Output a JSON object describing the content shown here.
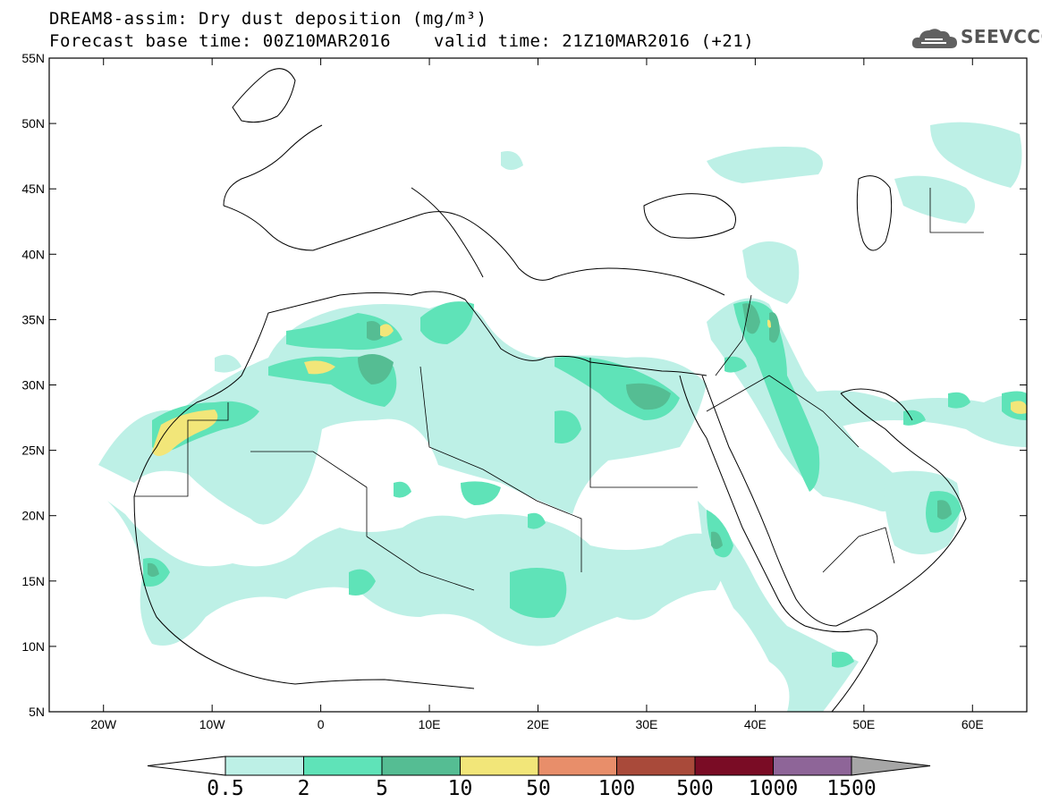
{
  "title": {
    "line1": "DREAM8-assim: Dry dust deposition (mg/m³)",
    "line2": "Forecast base time: 00Z10MAR2016",
    "valid": "valid time: 21Z10MAR2016 (+21)"
  },
  "logo": {
    "text": "SEEVCCC",
    "icon": "cloud-icon"
  },
  "map": {
    "lat_ticks": [
      "55N",
      "50N",
      "45N",
      "40N",
      "35N",
      "30N",
      "25N",
      "20N",
      "15N",
      "10N",
      "5N"
    ],
    "lon_ticks": [
      "20W",
      "10W",
      "0",
      "10E",
      "20E",
      "30E",
      "40E",
      "50E",
      "60E"
    ],
    "extent": {
      "lon": [
        -25,
        65
      ],
      "lat": [
        5,
        55
      ]
    }
  },
  "colorbar": {
    "labels": [
      "0.5",
      "2",
      "5",
      "10",
      "50",
      "100",
      "500",
      "1000",
      "1500"
    ],
    "colors": [
      "#bdf0e6",
      "#5fe3b8",
      "#55bd93",
      "#f2e679",
      "#e88e6a",
      "#a94a3a",
      "#7a0c25",
      "#8e6598",
      "#a6a6a6"
    ],
    "under_color": "#ffffff"
  }
}
